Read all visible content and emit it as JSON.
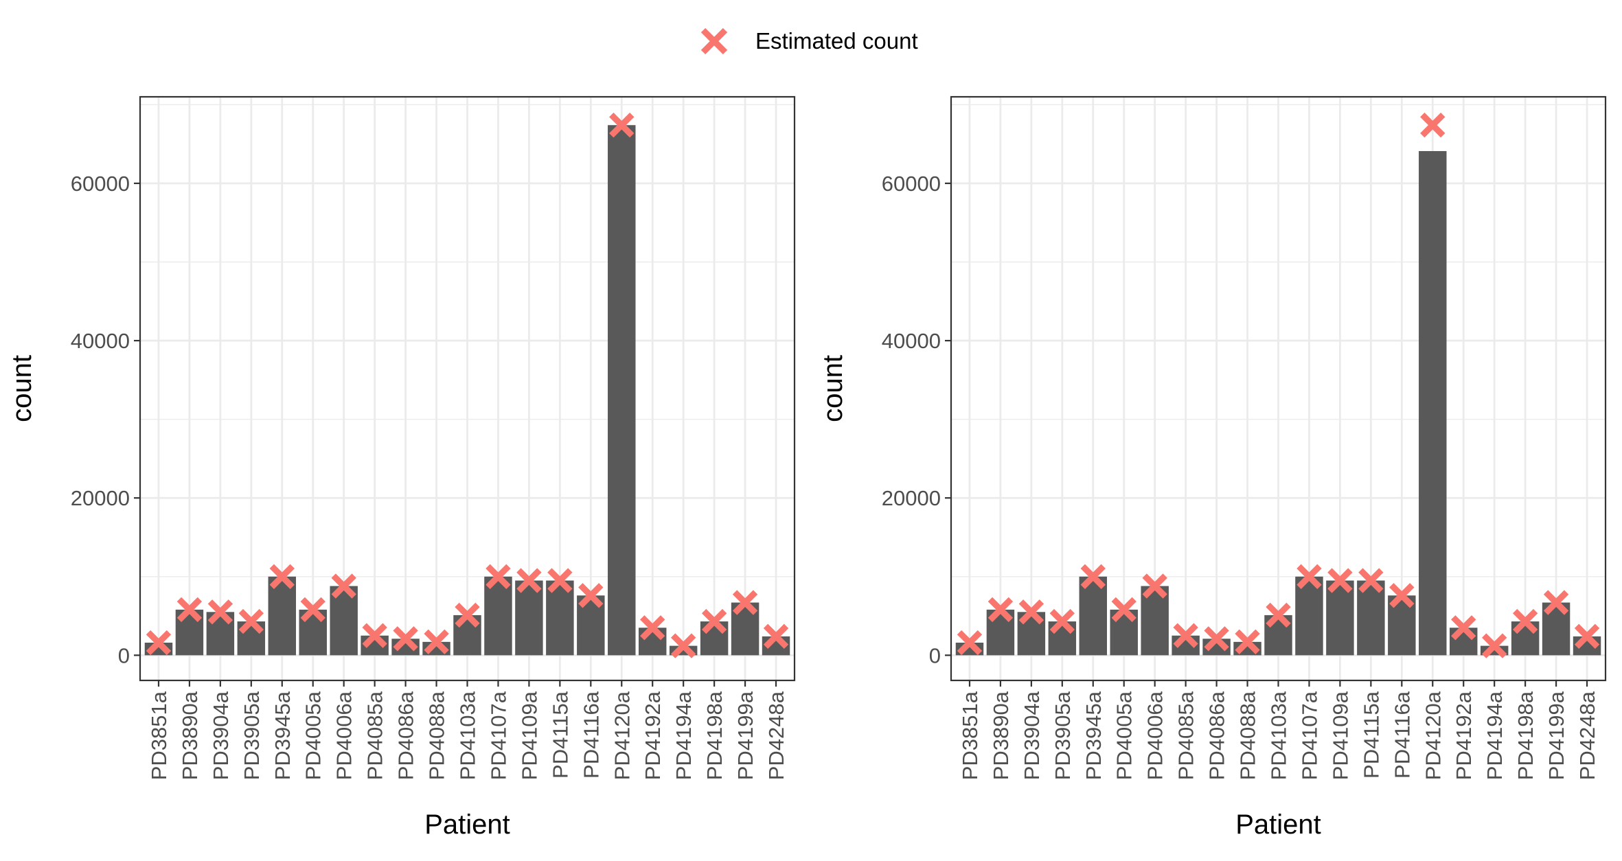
{
  "legend": {
    "label": "Estimated count",
    "marker_color": "#F8766D",
    "marker_shape": "cross-x"
  },
  "colors": {
    "bar": "#595959",
    "estimate": "#F8766D",
    "panel_background": "#FFFFFF",
    "grid": "#EBEBEB",
    "border": "#333333"
  },
  "chart_data": [
    {
      "type": "bar",
      "panel": "left",
      "xlabel": "Patient",
      "ylabel": "count",
      "ylim": [
        -3200,
        71000
      ],
      "yticks": [
        0,
        20000,
        40000,
        60000
      ],
      "grid": true,
      "legend_position": "top",
      "categories": [
        "PD3851a",
        "PD3890a",
        "PD3904a",
        "PD3905a",
        "PD3945a",
        "PD4005a",
        "PD4006a",
        "PD4085a",
        "PD4086a",
        "PD4088a",
        "PD4103a",
        "PD4107a",
        "PD4109a",
        "PD4115a",
        "PD4116a",
        "PD4120a",
        "PD4192a",
        "PD4194a",
        "PD4198a",
        "PD4199a",
        "PD4248a"
      ],
      "series": [
        {
          "kind": "bar",
          "values": [
            1600,
            5800,
            5500,
            4300,
            10000,
            5800,
            8800,
            2500,
            2100,
            1700,
            5100,
            10000,
            9500,
            9500,
            7600,
            67400,
            3500,
            1200,
            4300,
            6700,
            2400
          ]
        },
        {
          "kind": "point",
          "name": "Estimated count",
          "values": [
            1600,
            5800,
            5500,
            4300,
            10000,
            5800,
            8800,
            2500,
            2100,
            1700,
            5100,
            10000,
            9500,
            9500,
            7600,
            67400,
            3500,
            1200,
            4300,
            6700,
            2400
          ]
        }
      ]
    },
    {
      "type": "bar",
      "panel": "right",
      "xlabel": "Patient",
      "ylabel": "count",
      "ylim": [
        -3200,
        71000
      ],
      "yticks": [
        0,
        20000,
        40000,
        60000
      ],
      "grid": true,
      "legend_position": "top",
      "categories": [
        "PD3851a",
        "PD3890a",
        "PD3904a",
        "PD3905a",
        "PD3945a",
        "PD4005a",
        "PD4006a",
        "PD4085a",
        "PD4086a",
        "PD4088a",
        "PD4103a",
        "PD4107a",
        "PD4109a",
        "PD4115a",
        "PD4116a",
        "PD4120a",
        "PD4192a",
        "PD4194a",
        "PD4198a",
        "PD4199a",
        "PD4248a"
      ],
      "series": [
        {
          "kind": "bar",
          "values": [
            1600,
            5800,
            5500,
            4300,
            10000,
            5800,
            8800,
            2500,
            2100,
            1700,
            5100,
            10000,
            9500,
            9500,
            7600,
            64100,
            3500,
            1200,
            4300,
            6700,
            2400
          ]
        },
        {
          "kind": "point",
          "name": "Estimated count",
          "values": [
            1600,
            5800,
            5500,
            4300,
            10000,
            5800,
            8800,
            2500,
            2100,
            1700,
            5100,
            10000,
            9500,
            9500,
            7600,
            67400,
            3500,
            1200,
            4300,
            6700,
            2400
          ]
        }
      ]
    }
  ]
}
